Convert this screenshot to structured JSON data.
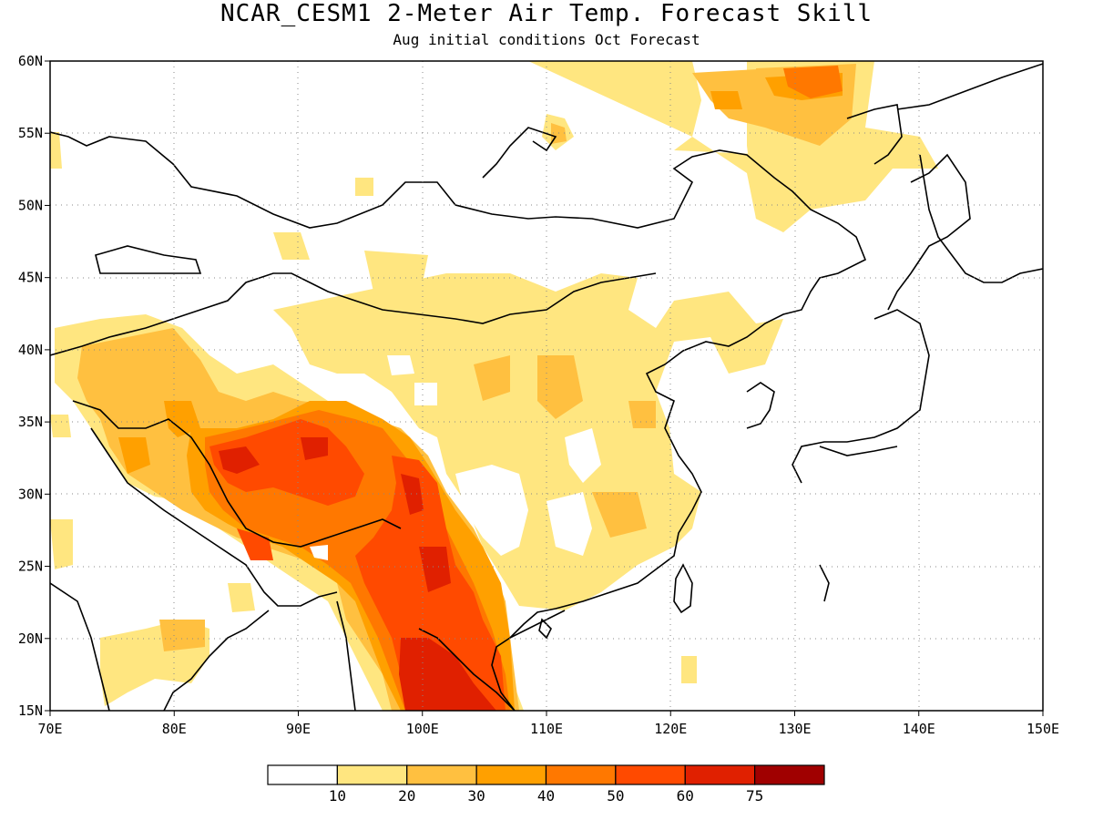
{
  "title": "NCAR_CESM1 2-Meter Air Temp. Forecast Skill",
  "subtitle": "Aug initial conditions  Oct Forecast",
  "map": {
    "lon_range": [
      70,
      150
    ],
    "lat_range": [
      15,
      60
    ],
    "lon_ticks": [
      "70E",
      "80E",
      "90E",
      "100E",
      "110E",
      "120E",
      "130E",
      "140E",
      "150E"
    ],
    "lat_ticks": [
      "60N",
      "55N",
      "50N",
      "45N",
      "40N",
      "35N",
      "30N",
      "25N",
      "20N",
      "15N"
    ],
    "gridlines": "dotted"
  },
  "colorbar": {
    "colors": [
      "#ffffff",
      "#ffe680",
      "#ffc040",
      "#ffa000",
      "#ff7800",
      "#ff4a00",
      "#e02000",
      "#a00000"
    ],
    "labels": [
      "10",
      "20",
      "30",
      "40",
      "50",
      "60",
      "75"
    ]
  }
}
